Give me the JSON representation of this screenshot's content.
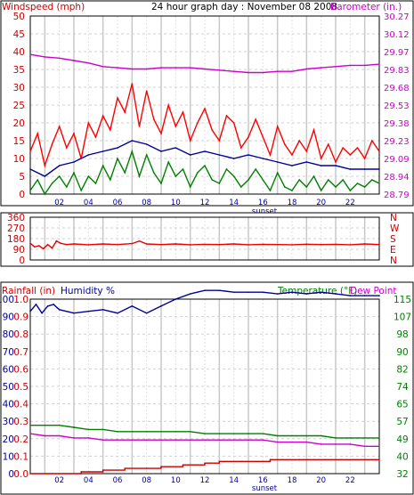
{
  "header": {
    "windspeed_label": "Windspeed (mph)",
    "title": "24 hour graph day : November 08 2008",
    "barometer_label": "Barometer (in.)"
  },
  "colors": {
    "wind_gust": "#ff0000",
    "wind_avg": "#008000",
    "barometer": "#cc00cc",
    "wind_direction": "#ee0000",
    "rainfall": "#cc0000",
    "humidity": "#000099",
    "temperature": "#008000",
    "dew_point": "#cc00cc",
    "frame": "#000000",
    "grid": "#bbbbbb"
  },
  "x_labels": [
    "02",
    "04",
    "06",
    "08",
    "10",
    "12",
    "14",
    "16",
    "18",
    "20",
    "22"
  ],
  "sunset_label": "sunset",
  "panel_bottom": {
    "rainfall_label": "Rainfall (in)",
    "humidity_label": "Humidity %",
    "temperature_label": "Temperature (°F)",
    "dewpoint_label": "Dew Point"
  },
  "chart_data": [
    {
      "type": "line",
      "name": "wind-barometer",
      "xlim": [
        0,
        24
      ],
      "left_axis": {
        "label": "Windspeed (mph)",
        "ticks": [
          "0",
          "5",
          "10",
          "15",
          "20",
          "25",
          "30",
          "35",
          "40",
          "45",
          "50"
        ],
        "ylim": [
          0,
          50
        ]
      },
      "right_axis": {
        "label": "Barometer (in.)",
        "ticks": [
          "28.79",
          "28.94",
          "29.09",
          "29.23",
          "29.38",
          "29.53",
          "29.68",
          "29.83",
          "29.97",
          "30.12",
          "30.27"
        ],
        "ylim": [
          28.79,
          30.27
        ]
      },
      "grid": true,
      "series": [
        {
          "color_key": "barometer",
          "axis": "right",
          "x": [
            0,
            0.5,
            1,
            2,
            3,
            4,
            5,
            6,
            7,
            8,
            9,
            10,
            11,
            12,
            13,
            14,
            15,
            16,
            17,
            18,
            19,
            20,
            21,
            22,
            23,
            24
          ],
          "y": [
            29.95,
            29.94,
            29.93,
            29.92,
            29.9,
            29.88,
            29.85,
            29.84,
            29.83,
            29.83,
            29.84,
            29.84,
            29.84,
            29.83,
            29.82,
            29.81,
            29.8,
            29.8,
            29.81,
            29.81,
            29.83,
            29.84,
            29.85,
            29.86,
            29.86,
            29.87
          ]
        },
        {
          "color_key": "wind_gust",
          "axis": "left",
          "x": [
            0,
            0.5,
            1,
            1.5,
            2,
            2.5,
            3,
            3.5,
            4,
            4.5,
            5,
            5.5,
            6,
            6.5,
            7,
            7.5,
            8,
            8.5,
            9,
            9.5,
            10,
            10.5,
            11,
            11.5,
            12,
            12.5,
            13,
            13.5,
            14,
            14.5,
            15,
            15.5,
            16,
            16.5,
            17,
            17.5,
            18,
            18.5,
            19,
            19.5,
            20,
            20.5,
            21,
            21.5,
            22,
            22.5,
            23,
            23.5,
            24
          ],
          "y": [
            12,
            17,
            8,
            14,
            19,
            13,
            17,
            10,
            20,
            16,
            22,
            18,
            27,
            23,
            31,
            19,
            29,
            21,
            17,
            25,
            19,
            23,
            15,
            20,
            24,
            18,
            15,
            22,
            20,
            13,
            16,
            21,
            16,
            11,
            19,
            14,
            11,
            15,
            12,
            18,
            10,
            14,
            9,
            13,
            11,
            13,
            10,
            15,
            12
          ]
        },
        {
          "color_key": "humidity",
          "axis": "left",
          "x": [
            0,
            1,
            2,
            3,
            4,
            5,
            6,
            7,
            8,
            9,
            10,
            11,
            12,
            13,
            14,
            15,
            16,
            17,
            18,
            19,
            20,
            21,
            22,
            23,
            24
          ],
          "y": [
            7,
            5,
            8,
            9,
            11,
            12,
            13,
            15,
            14,
            12,
            13,
            11,
            12,
            11,
            10,
            11,
            10,
            9,
            8,
            9,
            8,
            8,
            7,
            7,
            7
          ]
        },
        {
          "color_key": "wind_avg",
          "axis": "left",
          "x": [
            0,
            0.5,
            1,
            1.5,
            2,
            2.5,
            3,
            3.5,
            4,
            4.5,
            5,
            5.5,
            6,
            6.5,
            7,
            7.5,
            8,
            8.5,
            9,
            9.5,
            10,
            10.5,
            11,
            11.5,
            12,
            12.5,
            13,
            13.5,
            14,
            14.5,
            15,
            15.5,
            16,
            16.5,
            17,
            17.5,
            18,
            18.5,
            19,
            19.5,
            20,
            20.5,
            21,
            21.5,
            22,
            22.5,
            23,
            23.5,
            24
          ],
          "y": [
            1,
            4,
            0,
            3,
            5,
            2,
            6,
            1,
            5,
            3,
            8,
            4,
            10,
            6,
            12,
            5,
            11,
            6,
            3,
            9,
            5,
            7,
            2,
            6,
            8,
            4,
            3,
            7,
            5,
            2,
            4,
            7,
            4,
            1,
            6,
            2,
            1,
            4,
            2,
            5,
            1,
            4,
            2,
            4,
            1,
            3,
            2,
            4,
            3
          ]
        }
      ]
    },
    {
      "type": "line",
      "name": "wind-direction",
      "xlim": [
        0,
        24
      ],
      "left_axis": {
        "ticks": [
          "0",
          "90",
          "180",
          "270",
          "360"
        ],
        "ylim": [
          0,
          360
        ]
      },
      "right_axis": {
        "ticks": [
          "N",
          "E",
          "S",
          "W",
          "N"
        ]
      },
      "grid": true,
      "series": [
        {
          "color_key": "wind_direction",
          "axis": "left",
          "x": [
            0,
            0.3,
            0.6,
            0.9,
            1.2,
            1.5,
            1.8,
            2.1,
            2.5,
            3,
            4,
            5,
            6,
            7,
            7.5,
            8,
            9,
            10,
            11,
            12,
            13,
            14,
            15,
            16,
            17,
            18,
            19,
            20,
            21,
            22,
            23,
            24
          ],
          "y": [
            140,
            110,
            120,
            95,
            130,
            100,
            160,
            140,
            130,
            135,
            128,
            135,
            130,
            138,
            160,
            135,
            130,
            135,
            128,
            132,
            130,
            135,
            128,
            132,
            130,
            128,
            133,
            130,
            132,
            128,
            135,
            130
          ]
        }
      ]
    },
    {
      "type": "line",
      "name": "rain-humidity-temperature",
      "xlim": [
        0,
        24
      ],
      "left_axis_rain": {
        "label": "Rainfall (in)",
        "ticks": [
          "0.0",
          "0.1",
          "0.2",
          "0.3",
          "0.4",
          "0.5",
          "0.6",
          "0.7",
          "0.8",
          "0.9",
          "1.0",
          "1.1"
        ],
        "ylim": [
          0,
          1.1
        ]
      },
      "left_axis_humidity": {
        "label": "Humidity %",
        "ticks": [
          "0",
          "10",
          "20",
          "30",
          "40",
          "50",
          "60",
          "70",
          "80",
          "90",
          "100"
        ],
        "ylim": [
          0,
          110
        ]
      },
      "right_axis": {
        "label": "Temperature (°F)",
        "ticks": [
          "32",
          "40",
          "49",
          "57",
          "65",
          "74",
          "82",
          "90",
          "98",
          "107",
          "115"
        ],
        "ylim": [
          32,
          115
        ]
      },
      "grid": true,
      "series": [
        {
          "color_key": "humidity",
          "axis": "humidity",
          "x": [
            0,
            0.4,
            0.8,
            1.2,
            1.6,
            2,
            3,
            4,
            5,
            6,
            7,
            8,
            9,
            10,
            11,
            12,
            13,
            14,
            15,
            16,
            17,
            18,
            19,
            20,
            21,
            22,
            23,
            24
          ],
          "y": [
            93,
            97,
            92,
            96,
            97,
            94,
            92,
            93,
            94,
            92,
            96,
            92,
            96,
            100,
            103,
            105,
            105,
            104,
            104,
            104,
            103,
            104,
            103,
            104,
            103,
            102,
            102,
            102
          ]
        },
        {
          "color_key": "temperature",
          "axis": "right",
          "x": [
            0,
            1,
            2,
            3,
            4,
            5,
            6,
            7,
            8,
            9,
            10,
            11,
            12,
            13,
            14,
            15,
            16,
            17,
            18,
            19,
            20,
            21,
            22,
            23,
            24
          ],
          "y": [
            55,
            55,
            55,
            54,
            53,
            53,
            52,
            52,
            52,
            52,
            52,
            52,
            51,
            51,
            51,
            51,
            51,
            50,
            50,
            50,
            50,
            49,
            49,
            49,
            49
          ]
        },
        {
          "color_key": "dew_point",
          "axis": "right",
          "x": [
            0,
            1,
            2,
            3,
            4,
            5,
            6,
            7,
            8,
            9,
            10,
            11,
            12,
            13,
            14,
            15,
            16,
            17,
            18,
            19,
            20,
            21,
            22,
            23,
            24
          ],
          "y": [
            51,
            50,
            50,
            49,
            49,
            48,
            48,
            48,
            48,
            48,
            48,
            48,
            48,
            48,
            48,
            48,
            48,
            47,
            47,
            47,
            46,
            46,
            46,
            45,
            45
          ]
        },
        {
          "color_key": "rainfall",
          "axis": "rain",
          "step": true,
          "x": [
            0,
            3.5,
            5,
            6.5,
            8,
            9,
            10.5,
            12,
            13,
            14.5,
            16.5,
            18.5,
            23.5,
            24
          ],
          "y": [
            0.0,
            0.01,
            0.02,
            0.03,
            0.03,
            0.04,
            0.05,
            0.06,
            0.07,
            0.07,
            0.08,
            0.08,
            0.08,
            0.08
          ]
        }
      ]
    }
  ]
}
